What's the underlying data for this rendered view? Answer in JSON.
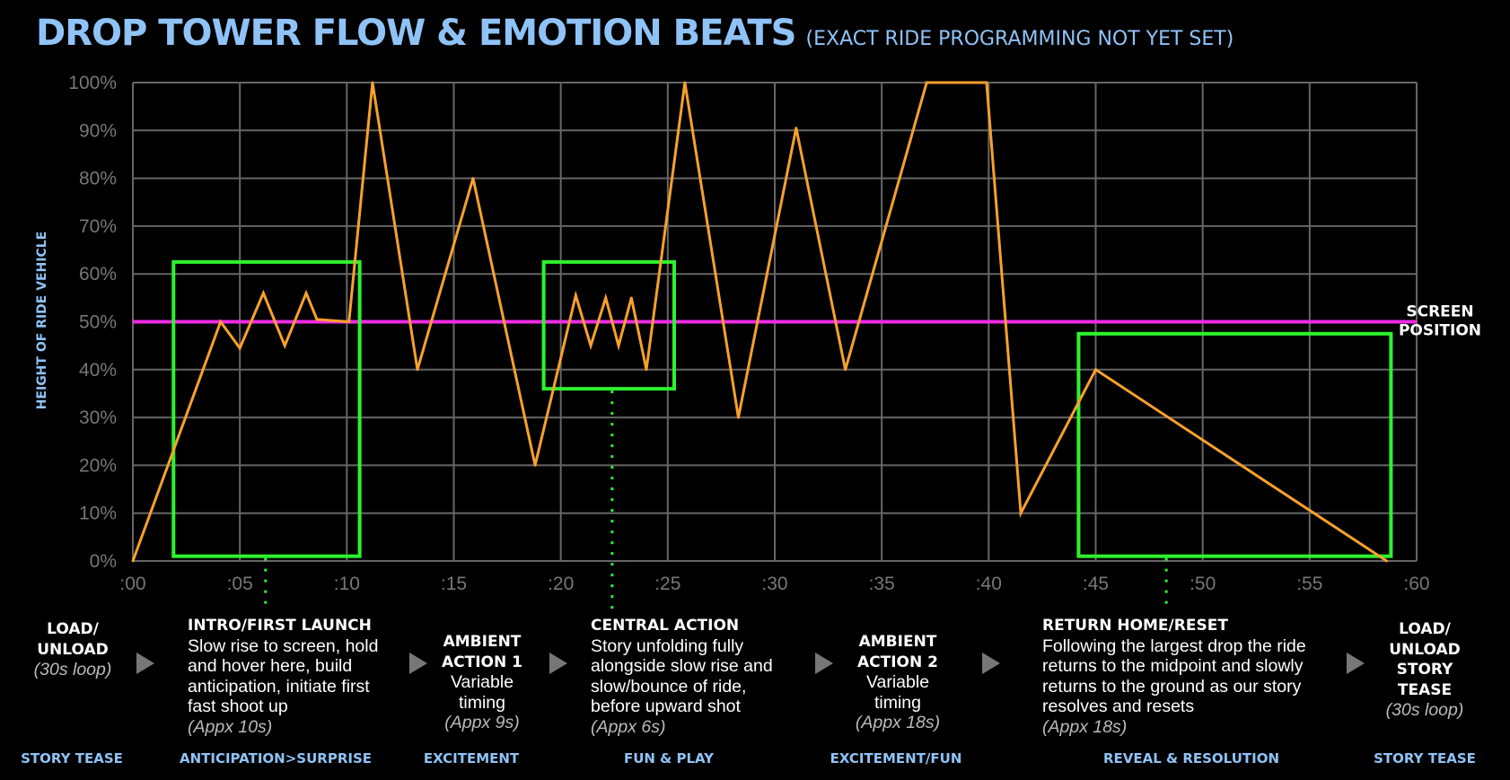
{
  "title": {
    "main": "DROP TOWER FLOW & EMOTION BEATS",
    "sub": "(EXACT RIDE PROGRAMMING NOT YET SET)"
  },
  "colors": {
    "ride_line": "#f7a12c",
    "screen_line": "#ef2be7",
    "beat_box": "#2ef22e",
    "grid": "#666666",
    "accent": "#8fc3f7"
  },
  "chart_data": {
    "type": "line",
    "title": "DROP TOWER FLOW & EMOTION BEATS",
    "ylabel": "HEIGHT OF RIDE VEHICLE",
    "xlabel": "",
    "x_tick_labels": [
      ":00",
      ":05",
      ":10",
      ":15",
      ":20",
      ":25",
      ":30",
      ":35",
      ":40",
      ":45",
      ":50",
      ":55",
      ":60"
    ],
    "x_tick_values": [
      0,
      5,
      10,
      15,
      20,
      25,
      30,
      35,
      40,
      45,
      50,
      55,
      60
    ],
    "y_tick_labels": [
      "0%",
      "10%",
      "20%",
      "30%",
      "40%",
      "50%",
      "60%",
      "70%",
      "80%",
      "90%",
      "100%"
    ],
    "y_tick_values": [
      0,
      10,
      20,
      30,
      40,
      50,
      60,
      70,
      80,
      90,
      100
    ],
    "xlim": [
      0,
      60
    ],
    "ylim": [
      0,
      100
    ],
    "grid": true,
    "series": [
      {
        "name": "Ride vehicle height",
        "x": [
          0,
          4.1,
          5,
          6.1,
          7.1,
          8.1,
          8.6,
          10.1,
          11.2,
          13.3,
          15.9,
          18.8,
          20.7,
          21.4,
          22.1,
          22.7,
          23.3,
          24.0,
          25.8,
          28.3,
          31.0,
          33.3,
          37.1,
          39.9,
          41.5,
          45.0,
          58.6
        ],
        "y": [
          0,
          50,
          44.5,
          56,
          45,
          56,
          50.5,
          50,
          100,
          40,
          80,
          20,
          55.5,
          45,
          55,
          45,
          55,
          40,
          100,
          30,
          90.5,
          40,
          100,
          100,
          10,
          40,
          0
        ]
      }
    ],
    "reference_lines": [
      {
        "name": "SCREEN POSITION",
        "y": 50,
        "label_lines": [
          "SCREEN",
          "POSITION"
        ]
      }
    ],
    "highlight_boxes": [
      {
        "name": "Intro/First Launch",
        "x_range": [
          1.9,
          10.6
        ],
        "y_range": [
          1,
          62.5
        ],
        "pointer_x": 6.2
      },
      {
        "name": "Central Action",
        "x_range": [
          19.2,
          25.3
        ],
        "y_range": [
          36,
          62.5
        ],
        "pointer_x": 22.4
      },
      {
        "name": "Return Home/Reset",
        "x_range": [
          44.2,
          58.8
        ],
        "y_range": [
          1,
          47.5
        ],
        "pointer_x": 48.3
      }
    ]
  },
  "beats": {
    "load1": {
      "h1": "LOAD/",
      "h2": "UNLOAD",
      "approx": "(30s loop)"
    },
    "intro": {
      "heading": "INTRO/FIRST LAUNCH",
      "l1": "Slow rise to screen, hold",
      "l2": "and hover here, build",
      "l3": "anticipation, initiate first",
      "l4": "fast shoot up",
      "approx": "(Appx 10s)"
    },
    "ambient1": {
      "h1": "AMBIENT",
      "h2": "ACTION 1",
      "d1": "Variable",
      "d2": "timing",
      "approx": "(Appx 9s)"
    },
    "central": {
      "heading": "CENTRAL ACTION",
      "l1": "Story unfolding fully",
      "l2": "alongside slow rise and",
      "l3": "slow/bounce of ride,",
      "l4": "before upward shot",
      "approx": "(Appx 6s)"
    },
    "ambient2": {
      "h1": "AMBIENT",
      "h2": "ACTION 2",
      "d1": "Variable",
      "d2": "timing",
      "approx": "(Appx 18s)"
    },
    "reset": {
      "heading": "RETURN HOME/RESET",
      "l1": "Following the largest drop the ride",
      "l2": "returns to the midpoint and slowly",
      "l3": "returns to the ground as our story",
      "l4": "resolves and resets",
      "approx": "(Appx 18s)"
    },
    "load2": {
      "h1": "LOAD/",
      "h2": "UNLOAD",
      "h3": "STORY",
      "h4": "TEASE",
      "approx": "(30s loop)"
    }
  },
  "emotions": [
    "STORY TEASE",
    "ANTICIPATION>SURPRISE",
    "EXCITEMENT",
    "FUN & PLAY",
    "EXCITEMENT/FUN",
    "REVEAL & RESOLUTION",
    "STORY TEASE"
  ]
}
